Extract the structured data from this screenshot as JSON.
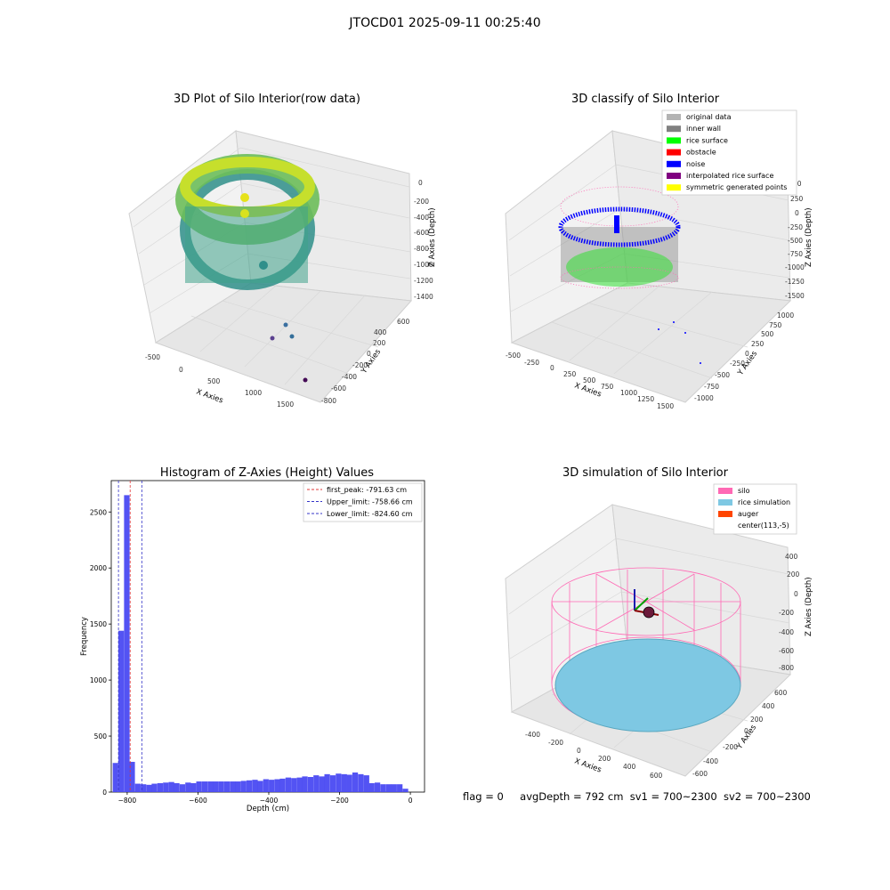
{
  "figure_title": "JTOCD01 2025-09-11 00:25:40",
  "footer": {
    "flag": "flag = 0",
    "avg_depth": "avgDepth = 792 cm",
    "sv1": "sv1 = 700~2300",
    "sv2": "sv2 = 700~2300"
  },
  "colors": {
    "pane": "#f2f2f2",
    "grid": "#d9d9d9",
    "hist_bar": "#4a4af2",
    "first_peak": "#e23a3a",
    "limit": "#3434c8",
    "silo": "#ff69b4",
    "rice": "#7ec8e3",
    "auger": "#ff4500",
    "inner_wall": "#808080",
    "rice_surface": "#00ff00",
    "noise": "#0000ff",
    "obstacle": "#ff0000",
    "interpolated": "#800080",
    "symmetric": "#ffff00",
    "original": "#b3b3b3"
  },
  "chart_data": [
    {
      "type": "scatter3d",
      "title": "3D Plot of Silo Interior(row data)",
      "xlabel": "X Axies",
      "ylabel": "Y Axies",
      "zlabel": "Z Axies (Depth)",
      "x_ticks": [
        "-500",
        "0",
        "500",
        "1000",
        "1500"
      ],
      "y_ticks": [
        "-800",
        "-600",
        "-400",
        "-200",
        "0",
        "200",
        "400",
        "600"
      ],
      "z_ticks": [
        "0",
        "-200",
        "-400",
        "-600",
        "-800",
        "-1000",
        "-1200",
        "-1400"
      ],
      "colormap": "viridis"
    },
    {
      "type": "scatter3d",
      "title": "3D classify of Silo Interior",
      "xlabel": "X Axies",
      "ylabel": "Y Axies",
      "zlabel": "Z Axies (Depth)",
      "x_ticks": [
        "-500",
        "-250",
        "0",
        "250",
        "500",
        "750",
        "1000",
        "1250",
        "1500"
      ],
      "y_ticks": [
        "-1000",
        "-750",
        "-500",
        "-250",
        "0",
        "250",
        "500",
        "750",
        "1000"
      ],
      "z_ticks": [
        "250",
        "0",
        "-250",
        "-500",
        "-750",
        "-1000",
        "-1250",
        "-1500"
      ],
      "z_tick_partial": "00",
      "legend": [
        {
          "label": "original data",
          "color": "#b3b3b3"
        },
        {
          "label": "inner wall",
          "color": "#808080"
        },
        {
          "label": "rice surface",
          "color": "#00ff00"
        },
        {
          "label": "obstacle",
          "color": "#ff0000"
        },
        {
          "label": "noise",
          "color": "#0000ff"
        },
        {
          "label": "interpolated rice surface",
          "color": "#800080"
        },
        {
          "label": "symmetric generated points",
          "color": "#ffff00"
        }
      ]
    },
    {
      "type": "bar",
      "title": "Histogram of Z-Axies (Height) Values",
      "xlabel": "Depth (cm)",
      "ylabel": "Frequency",
      "xlim": [
        -845,
        40
      ],
      "ylim": [
        0,
        2780
      ],
      "x_ticks": [
        -800,
        -600,
        -400,
        -200,
        0
      ],
      "y_ticks": [
        0,
        500,
        1000,
        1500,
        2000,
        2500
      ],
      "bin_width": 15.7,
      "bins": [
        {
          "x": -833,
          "v": 260
        },
        {
          "x": -817,
          "v": 1440
        },
        {
          "x": -801,
          "v": 2650
        },
        {
          "x": -786,
          "v": 270
        },
        {
          "x": -770,
          "v": 75
        },
        {
          "x": -754,
          "v": 70
        },
        {
          "x": -738,
          "v": 65
        },
        {
          "x": -723,
          "v": 75
        },
        {
          "x": -707,
          "v": 80
        },
        {
          "x": -691,
          "v": 85
        },
        {
          "x": -675,
          "v": 90
        },
        {
          "x": -660,
          "v": 80
        },
        {
          "x": -644,
          "v": 70
        },
        {
          "x": -628,
          "v": 85
        },
        {
          "x": -613,
          "v": 80
        },
        {
          "x": -597,
          "v": 95
        },
        {
          "x": -581,
          "v": 95
        },
        {
          "x": -565,
          "v": 95
        },
        {
          "x": -550,
          "v": 95
        },
        {
          "x": -534,
          "v": 95
        },
        {
          "x": -518,
          "v": 95
        },
        {
          "x": -502,
          "v": 95
        },
        {
          "x": -487,
          "v": 95
        },
        {
          "x": -471,
          "v": 100
        },
        {
          "x": -455,
          "v": 105
        },
        {
          "x": -439,
          "v": 110
        },
        {
          "x": -424,
          "v": 100
        },
        {
          "x": -408,
          "v": 115
        },
        {
          "x": -392,
          "v": 110
        },
        {
          "x": -376,
          "v": 115
        },
        {
          "x": -361,
          "v": 120
        },
        {
          "x": -345,
          "v": 130
        },
        {
          "x": -329,
          "v": 125
        },
        {
          "x": -313,
          "v": 130
        },
        {
          "x": -298,
          "v": 140
        },
        {
          "x": -282,
          "v": 135
        },
        {
          "x": -266,
          "v": 150
        },
        {
          "x": -250,
          "v": 140
        },
        {
          "x": -235,
          "v": 160
        },
        {
          "x": -219,
          "v": 150
        },
        {
          "x": -203,
          "v": 165
        },
        {
          "x": -187,
          "v": 160
        },
        {
          "x": -172,
          "v": 155
        },
        {
          "x": -156,
          "v": 175
        },
        {
          "x": -140,
          "v": 160
        },
        {
          "x": -124,
          "v": 150
        },
        {
          "x": -109,
          "v": 80
        },
        {
          "x": -93,
          "v": 85
        },
        {
          "x": -77,
          "v": 70
        },
        {
          "x": -61,
          "v": 70
        },
        {
          "x": -46,
          "v": 70
        },
        {
          "x": -30,
          "v": 70
        },
        {
          "x": -14,
          "v": 30
        }
      ],
      "lines": [
        {
          "label": "first_peak: -791.63 cm",
          "value": -791.63,
          "color": "#e23a3a"
        },
        {
          "label": "Upper_limit: -758.66 cm",
          "value": -758.66,
          "color": "#3434c8"
        },
        {
          "label": "Lower_limit: -824.60 cm",
          "value": -824.6,
          "color": "#3434c8"
        }
      ]
    },
    {
      "type": "surface3d",
      "title": "3D simulation of Silo Interior",
      "xlabel": "X Axies",
      "ylabel": "Y Axies",
      "zlabel": "Z Axies (Depth)",
      "x_ticks": [
        "-400",
        "-200",
        "0",
        "200",
        "400",
        "600"
      ],
      "y_ticks": [
        "-600",
        "-400",
        "-200",
        "0",
        "200",
        "400",
        "600"
      ],
      "z_ticks": [
        "400",
        "200",
        "0",
        "-200",
        "-400",
        "-600",
        "-800"
      ],
      "legend": [
        {
          "label": "silo",
          "color": "#ff69b4"
        },
        {
          "label": "rice simulation",
          "color": "#7ec8e3"
        },
        {
          "label": "auger",
          "color": "#ff4500"
        },
        {
          "label": "center(113,-5)",
          "color": ""
        }
      ]
    }
  ]
}
